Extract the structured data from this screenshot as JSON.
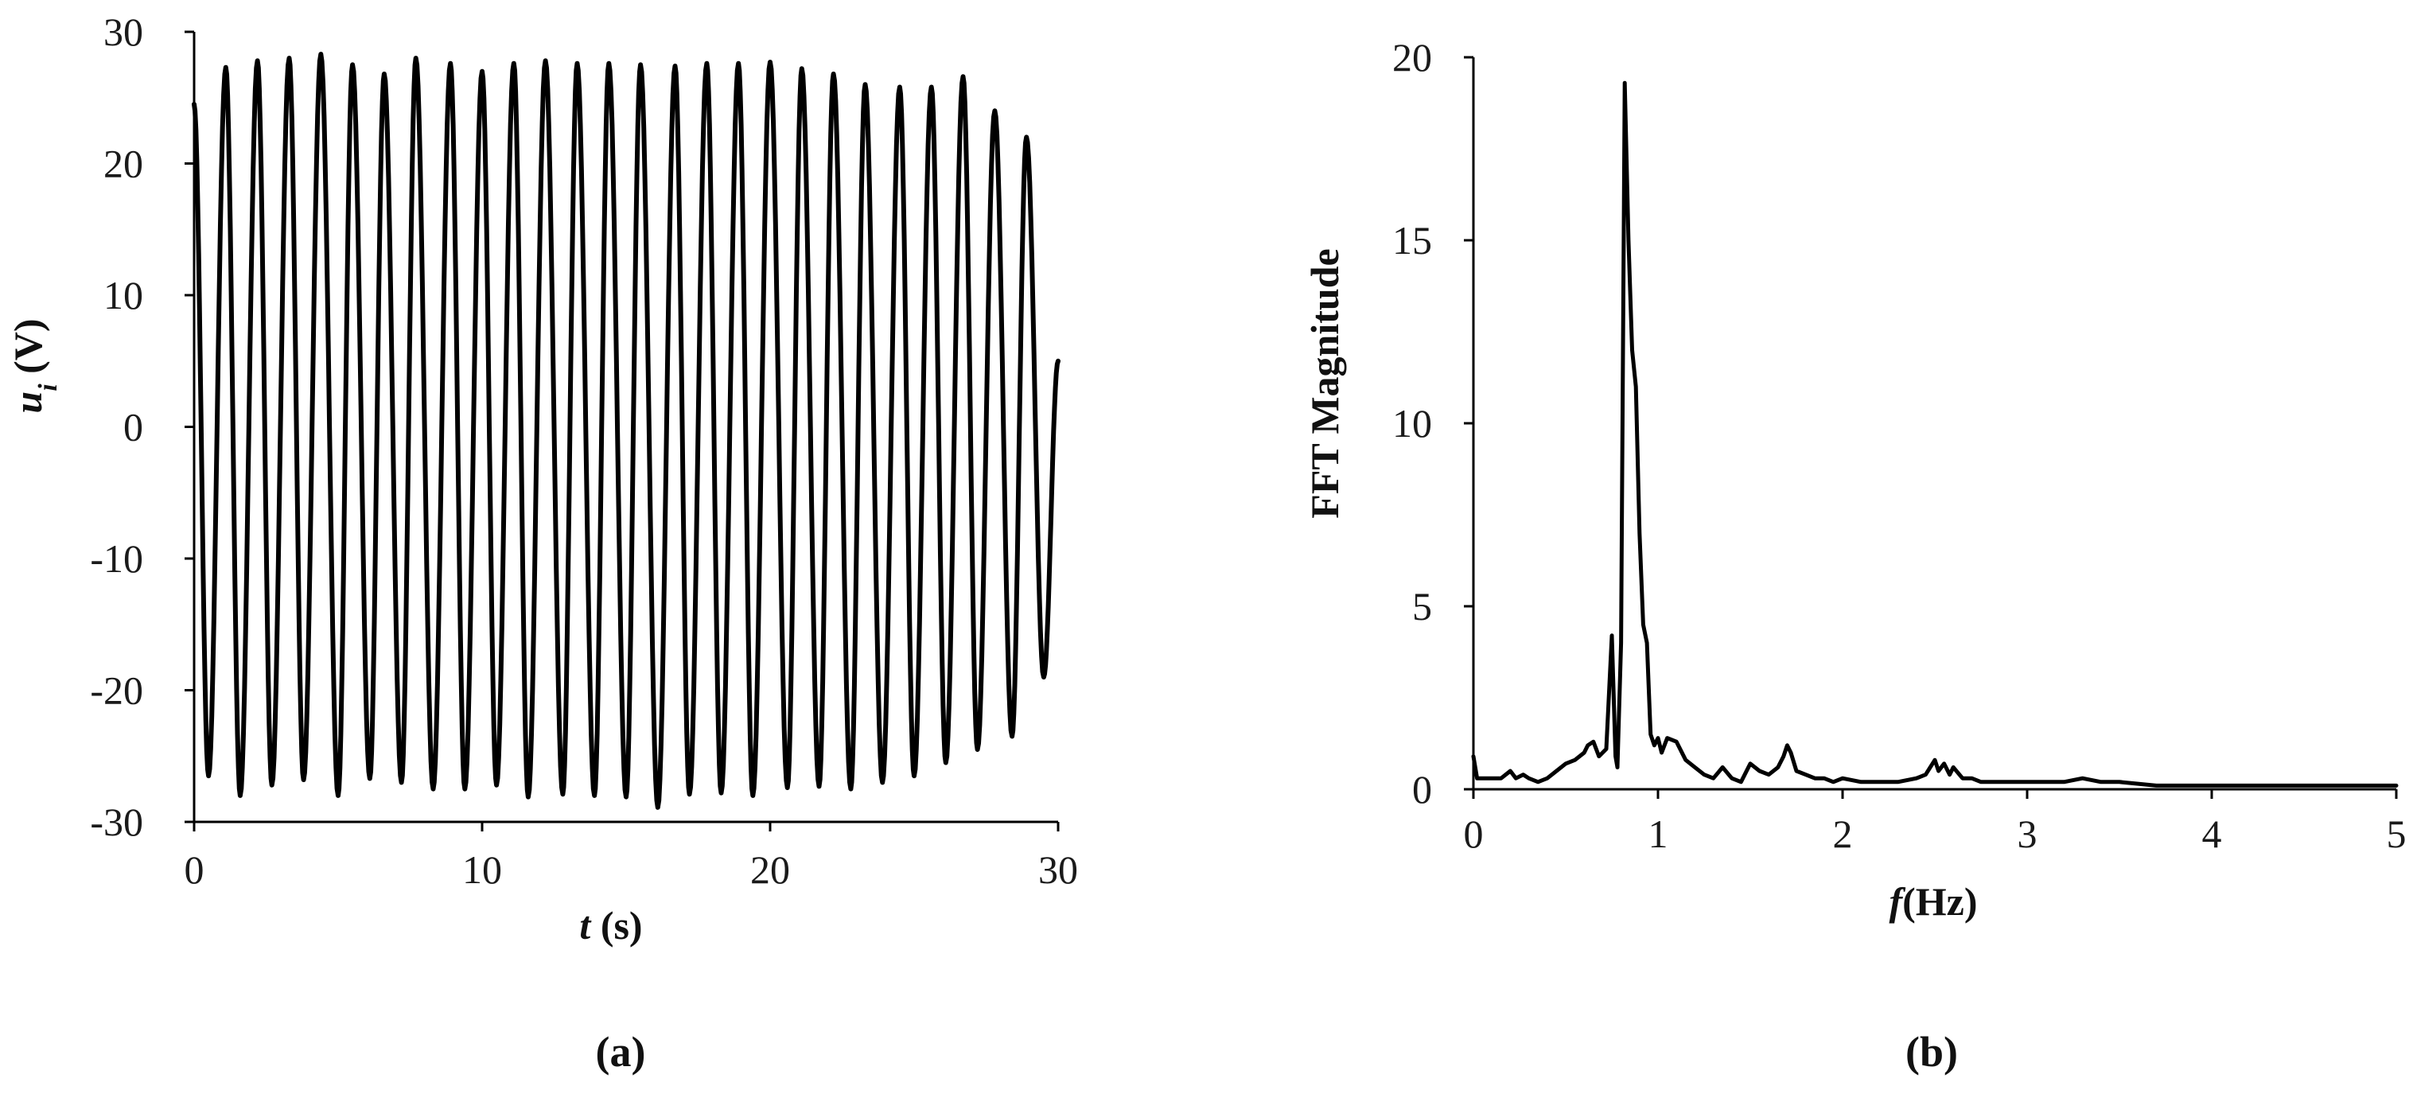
{
  "chart_data": [
    {
      "type": "line",
      "panel_label": "(a)",
      "xlabel_var": "t",
      "xlabel_unit": " (s)",
      "ylabel_var": "u",
      "ylabel_sub": "i",
      "ylabel_unit": " (V)",
      "xlim": [
        0,
        30
      ],
      "ylim": [
        -30,
        30
      ],
      "x_ticks": [
        "0",
        "10",
        "20",
        "30"
      ],
      "y_ticks": [
        "30",
        "20",
        "10",
        "0",
        "-10",
        "-20",
        "-30"
      ],
      "grid": false,
      "series": [
        {
          "values_description_free": true,
          "x": [
            0,
            0.5,
            1.1,
            1.6,
            2.2,
            2.7,
            3.3,
            3.8,
            4.4,
            5.0,
            5.5,
            6.1,
            6.6,
            7.2,
            7.7,
            8.3,
            8.9,
            9.4,
            10.0,
            10.5,
            11.1,
            11.6,
            12.2,
            12.8,
            13.3,
            13.9,
            14.4,
            15.0,
            15.5,
            16.1,
            16.7,
            17.2,
            17.8,
            18.3,
            18.9,
            19.4,
            20.0,
            20.6,
            21.1,
            21.7,
            22.2,
            22.8,
            23.3,
            23.9,
            24.5,
            25.0,
            25.6,
            26.1,
            26.7,
            27.2,
            27.8,
            28.4,
            28.9,
            29.5,
            30.0
          ],
          "y": [
            24.5,
            -26.5,
            27.3,
            -28.0,
            27.8,
            -27.2,
            28.0,
            -26.8,
            28.3,
            -28.0,
            27.5,
            -26.7,
            26.8,
            -27.0,
            28.0,
            -27.5,
            27.6,
            -27.5,
            27.0,
            -27.2,
            27.6,
            -28.1,
            27.8,
            -27.9,
            27.6,
            -28.0,
            27.6,
            -28.1,
            27.5,
            -28.9,
            27.4,
            -27.9,
            27.6,
            -27.8,
            27.6,
            -28.0,
            27.7,
            -27.4,
            27.2,
            -27.3,
            26.8,
            -27.5,
            26.0,
            -27.0,
            25.8,
            -26.5,
            25.8,
            -25.5,
            26.6,
            -24.5,
            24.0,
            -23.5,
            22.0,
            -19.0,
            5.0
          ]
        }
      ]
    },
    {
      "type": "line",
      "panel_label": "(b)",
      "xlabel_var": "f",
      "xlabel_unit": "(Hz)",
      "ylabel": "FFT Magnitude",
      "xlim": [
        0,
        5
      ],
      "ylim": [
        0,
        20
      ],
      "x_ticks": [
        "0",
        "1",
        "2",
        "3",
        "4",
        "5"
      ],
      "y_ticks": [
        "20",
        "15",
        "10",
        "5",
        "0"
      ],
      "grid": false,
      "series": [
        {
          "x": [
            0.0,
            0.02,
            0.05,
            0.1,
            0.15,
            0.2,
            0.23,
            0.27,
            0.3,
            0.35,
            0.4,
            0.45,
            0.5,
            0.55,
            0.6,
            0.62,
            0.65,
            0.68,
            0.7,
            0.72,
            0.75,
            0.77,
            0.78,
            0.8,
            0.82,
            0.84,
            0.86,
            0.88,
            0.9,
            0.92,
            0.94,
            0.96,
            0.98,
            1.0,
            1.02,
            1.05,
            1.1,
            1.15,
            1.2,
            1.25,
            1.3,
            1.35,
            1.4,
            1.45,
            1.5,
            1.55,
            1.6,
            1.65,
            1.68,
            1.7,
            1.72,
            1.75,
            1.8,
            1.85,
            1.9,
            1.95,
            2.0,
            2.1,
            2.2,
            2.3,
            2.4,
            2.45,
            2.5,
            2.52,
            2.55,
            2.58,
            2.6,
            2.65,
            2.7,
            2.75,
            2.8,
            2.9,
            3.0,
            3.1,
            3.2,
            3.3,
            3.4,
            3.5,
            3.7,
            3.9,
            4.1,
            4.3,
            4.5,
            4.7,
            4.9,
            5.0
          ],
          "y": [
            0.9,
            0.3,
            0.3,
            0.3,
            0.3,
            0.5,
            0.3,
            0.4,
            0.3,
            0.2,
            0.3,
            0.5,
            0.7,
            0.8,
            1.0,
            1.2,
            1.3,
            0.9,
            1.0,
            1.1,
            4.2,
            0.9,
            0.6,
            4.0,
            19.3,
            15.0,
            12.0,
            11.0,
            7.0,
            4.5,
            4.0,
            1.5,
            1.2,
            1.4,
            1.0,
            1.4,
            1.3,
            0.8,
            0.6,
            0.4,
            0.3,
            0.6,
            0.3,
            0.2,
            0.7,
            0.5,
            0.4,
            0.6,
            0.9,
            1.2,
            1.0,
            0.5,
            0.4,
            0.3,
            0.3,
            0.2,
            0.3,
            0.2,
            0.2,
            0.2,
            0.3,
            0.4,
            0.8,
            0.5,
            0.7,
            0.4,
            0.6,
            0.3,
            0.3,
            0.2,
            0.2,
            0.2,
            0.2,
            0.2,
            0.2,
            0.3,
            0.2,
            0.2,
            0.1,
            0.1,
            0.1,
            0.1,
            0.1,
            0.1,
            0.1,
            0.1
          ]
        }
      ]
    }
  ]
}
